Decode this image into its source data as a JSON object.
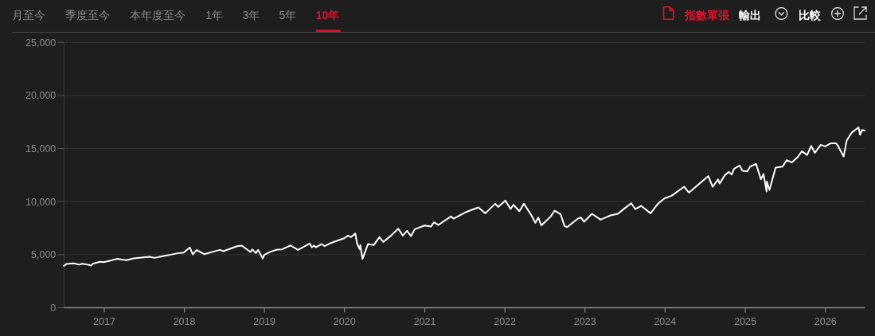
{
  "chart_data": {
    "type": "line",
    "annotations": [
      "月至今",
      "季度至今",
      "本年度至今",
      "1年",
      "3年",
      "5年",
      "10年",
      "指數單張",
      "輸出",
      "比較"
    ],
    "xlim": [
      "2016-07-01",
      "2026-06-30"
    ],
    "xticks": [
      "2017",
      "2018",
      "2019",
      "2020",
      "2021",
      "2022",
      "2023",
      "2024",
      "2025",
      "2026"
    ],
    "ylim": [
      0,
      25000
    ],
    "yticks": [
      0,
      {
        "value": 5000,
        "label": "5,000"
      },
      {
        "value": 10000,
        "label": "10,000"
      },
      {
        "value": 15000,
        "label": "15,000"
      },
      {
        "value": 20000,
        "label": "20,000"
      },
      {
        "value": 25000,
        "label": "25,000"
      }
    ],
    "grid": "y",
    "x": [
      "2016-07-01",
      "2016-07-14",
      "2016-08-15",
      "2016-09-09",
      "2016-09-22",
      "2016-10-13",
      "2016-11-03",
      "2016-11-10",
      "2016-12-13",
      "2016-12-30",
      "2017-01-26",
      "2017-03-01",
      "2017-03-27",
      "2017-04-13",
      "2017-05-15",
      "2017-06-19",
      "2017-07-26",
      "2017-08-18",
      "2017-09-29",
      "2017-10-31",
      "2017-11-30",
      "2017-12-29",
      "2018-01-26",
      "2018-02-08",
      "2018-02-26",
      "2018-04-02",
      "2018-05-15",
      "2018-06-12",
      "2018-06-28",
      "2018-08-29",
      "2018-09-20",
      "2018-10-29",
      "2018-11-07",
      "2018-11-23",
      "2018-12-03",
      "2018-12-24",
      "2018-12-31",
      "2019-01-31",
      "2019-02-28",
      "2019-03-22",
      "2019-04-30",
      "2019-06-03",
      "2019-07-26",
      "2019-08-05",
      "2019-08-15",
      "2019-08-23",
      "2019-09-19",
      "2019-10-02",
      "2019-10-31",
      "2019-11-29",
      "2019-12-31",
      "2020-01-17",
      "2020-01-31",
      "2020-02-19",
      "2020-02-28",
      "2020-03-11",
      "2020-03-13",
      "2020-03-23",
      "2020-04-17",
      "2020-05-13",
      "2020-06-08",
      "2020-06-26",
      "2020-07-31",
      "2020-09-02",
      "2020-09-23",
      "2020-10-12",
      "2020-10-30",
      "2020-11-16",
      "2020-12-31",
      "2021-01-29",
      "2021-02-12",
      "2021-03-04",
      "2021-04-30",
      "2021-05-12",
      "2021-07-06",
      "2021-09-02",
      "2021-10-04",
      "2021-11-18",
      "2021-12-01",
      "2022-01-03",
      "2022-01-27",
      "2022-02-09",
      "2022-03-08",
      "2022-03-29",
      "2022-05-02",
      "2022-05-20",
      "2022-06-02",
      "2022-06-16",
      "2022-07-29",
      "2022-08-16",
      "2022-09-12",
      "2022-09-30",
      "2022-10-12",
      "2022-11-30",
      "2022-12-13",
      "2022-12-28",
      "2023-02-02",
      "2023-03-13",
      "2023-04-28",
      "2023-05-31",
      "2023-06-30",
      "2023-07-31",
      "2023-08-18",
      "2023-09-14",
      "2023-10-27",
      "2023-11-30",
      "2023-12-29",
      "2024-01-31",
      "2024-03-28",
      "2024-04-19",
      "2024-05-31",
      "2024-07-16",
      "2024-08-05",
      "2024-08-30",
      "2024-09-06",
      "2024-09-30",
      "2024-10-18",
      "2024-10-31",
      "2024-11-11",
      "2024-12-06",
      "2024-12-19",
      "2025-01-10",
      "2025-01-23",
      "2025-02-19",
      "2025-03-13",
      "2025-03-25",
      "2025-04-08",
      "2025-04-09",
      "2025-04-21",
      "2025-05-19",
      "2025-06-20",
      "2025-07-08",
      "2025-08-01",
      "2025-08-28",
      "2025-09-16",
      "2025-10-10",
      "2025-10-28",
      "2025-11-14",
      "2025-12-11",
      "2025-12-31",
      "2026-01-26",
      "2026-02-18",
      "2026-02-26",
      "2026-03-25",
      "2026-04-08",
      "2026-05-01",
      "2026-06-01",
      "2026-06-08",
      "2026-06-17",
      "2026-06-30"
    ],
    "series": [
      {
        "color": "#ffffff",
        "values": [
          3950,
          4130,
          4180,
          4060,
          4150,
          4080,
          3980,
          4150,
          4330,
          4300,
          4420,
          4620,
          4520,
          4480,
          4650,
          4720,
          4800,
          4700,
          4880,
          5000,
          5130,
          5200,
          5680,
          5030,
          5440,
          5050,
          5300,
          5450,
          5330,
          5800,
          5850,
          5250,
          5500,
          5150,
          5450,
          4650,
          4980,
          5300,
          5480,
          5500,
          5870,
          5450,
          6050,
          5700,
          5850,
          5700,
          6000,
          5800,
          6100,
          6320,
          6550,
          6800,
          6650,
          7000,
          6000,
          5500,
          5900,
          4600,
          6000,
          5900,
          6650,
          6200,
          6800,
          7450,
          6800,
          7250,
          6750,
          7400,
          7750,
          7650,
          8050,
          7800,
          8600,
          8400,
          9000,
          9450,
          8900,
          9800,
          9500,
          10100,
          9300,
          9700,
          9100,
          9800,
          8700,
          8000,
          8500,
          7750,
          8600,
          9150,
          8800,
          7700,
          7600,
          8400,
          8500,
          8100,
          8850,
          8300,
          8700,
          8850,
          9350,
          9850,
          9300,
          9600,
          8900,
          9800,
          10300,
          10550,
          11400,
          10850,
          11600,
          12400,
          11400,
          12100,
          11700,
          12500,
          12800,
          12550,
          13100,
          13400,
          12900,
          12850,
          13300,
          13550,
          12100,
          12600,
          10950,
          11900,
          11100,
          13200,
          13300,
          13900,
          13700,
          14200,
          14750,
          14400,
          15250,
          14600,
          15350,
          15200,
          15500,
          15500,
          15300,
          14250,
          15750,
          16500,
          17000,
          16300,
          16750,
          16700
        ]
      }
    ]
  }
}
